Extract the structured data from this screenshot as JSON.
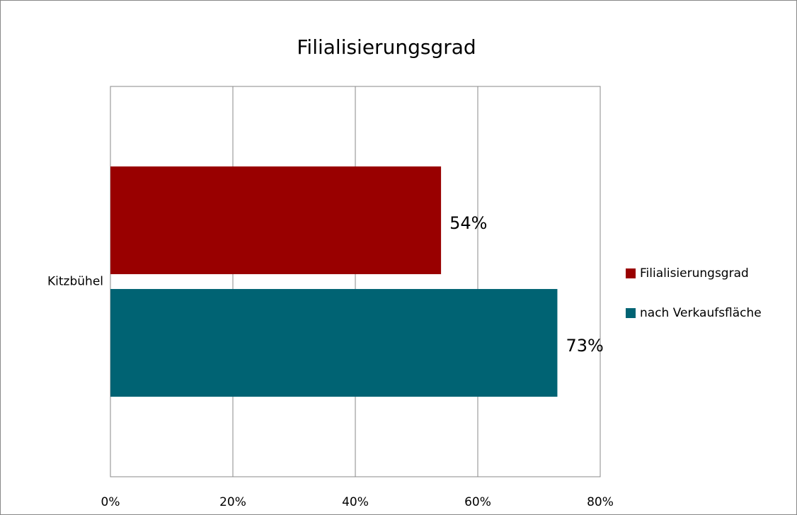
{
  "chart_data": {
    "type": "hbar",
    "title": "Filialisierungsgrad",
    "categories": [
      "Kitzbühel"
    ],
    "series": [
      {
        "name": "Filialisierungsgrad",
        "color": "#990000",
        "values": [
          54
        ],
        "value_labels": [
          "54%"
        ]
      },
      {
        "name": "nach Verkaufsfläche",
        "color": "#006373",
        "values": [
          73
        ],
        "value_labels": [
          "73%"
        ]
      }
    ],
    "xlim": [
      0,
      80
    ],
    "xticks": [
      {
        "value": 0,
        "label": "0%"
      },
      {
        "value": 20,
        "label": "20%"
      },
      {
        "value": 40,
        "label": "40%"
      },
      {
        "value": 60,
        "label": "60%"
      },
      {
        "value": 80,
        "label": "80%"
      }
    ],
    "grid": true,
    "legend": "right"
  }
}
